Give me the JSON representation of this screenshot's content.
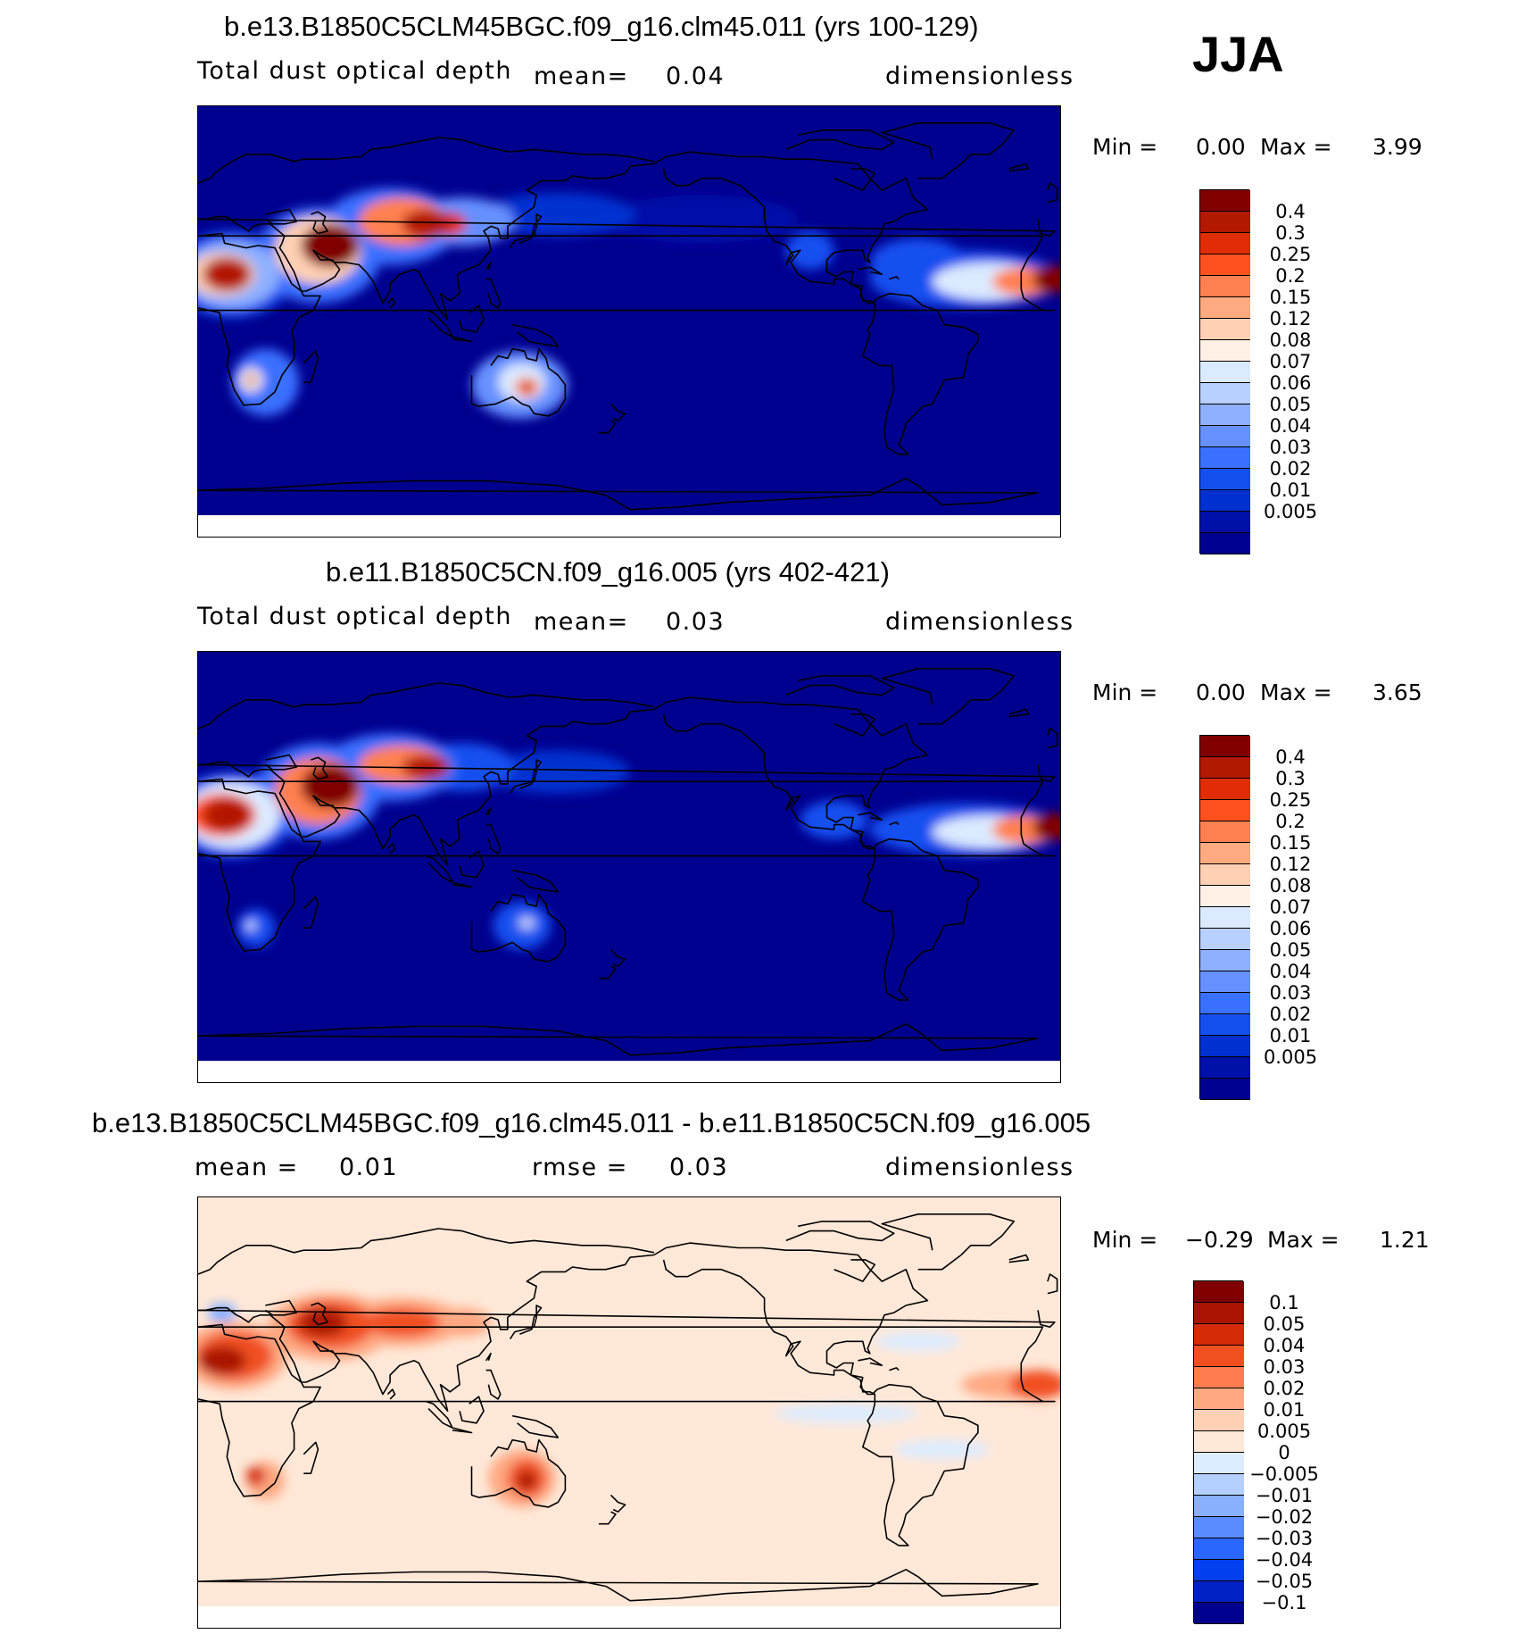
{
  "season": "JJA",
  "colors": {
    "abs": [
      "#00008f",
      "#0010a8",
      "#0030d0",
      "#1450f0",
      "#3a70ff",
      "#6690ff",
      "#8eb0ff",
      "#b8d0ff",
      "#dceaff",
      "#fff0e6",
      "#ffd0b4",
      "#ffaa80",
      "#ff8050",
      "#ff5020",
      "#e02d06",
      "#b31800",
      "#800000"
    ],
    "diff": [
      "#00008f",
      "#0022c4",
      "#0040ee",
      "#2a66ff",
      "#5a8cff",
      "#88b0ff",
      "#b4d0ff",
      "#ddecff",
      "#ffe8d8",
      "#ffd0b4",
      "#ffa882",
      "#ff7c50",
      "#f05020",
      "#d42a06",
      "#aa1400",
      "#800000"
    ]
  },
  "panels": [
    {
      "title": "b.e13.B1850C5CLM45BGC.f09_g16.clm45.011 (yrs 100-129)",
      "field": "Total dust optical depth",
      "mean_label": "mean=",
      "mean_value": "0.04",
      "units": "dimensionless",
      "min_label": "Min =",
      "min_value": "0.00",
      "max_label": "Max =",
      "max_value": "3.99"
    },
    {
      "title": "b.e11.B1850C5CN.f09_g16.005 (yrs 402-421)",
      "field": "Total dust optical depth",
      "mean_label": "mean=",
      "mean_value": "0.03",
      "units": "dimensionless",
      "min_label": "Min =",
      "min_value": "0.00",
      "max_label": "Max =",
      "max_value": "3.65"
    },
    {
      "title": "b.e13.B1850C5CLM45BGC.f09_g16.clm45.011 - b.e11.B1850C5CN.f09_g16.005",
      "mean_label": "mean =",
      "mean_value": "0.01",
      "rmse_label": "rmse =",
      "rmse_value": "0.03",
      "units": "dimensionless",
      "min_label": "Min =",
      "min_value": "−0.29",
      "max_label": "Max =",
      "max_value": "1.21"
    }
  ],
  "chart_data": [
    {
      "type": "heatmap",
      "title": "b.e13.B1850C5CLM45BGC.f09_g16.clm45.011 (yrs 100-129)",
      "variable": "Total dust optical depth",
      "units": "dimensionless",
      "mean": 0.04,
      "min": 0.0,
      "max": 3.99,
      "colorbar_levels": [
        "0.4",
        "0.3",
        "0.25",
        "0.2",
        "0.15",
        "0.12",
        "0.08",
        "0.07",
        "0.06",
        "0.05",
        "0.04",
        "0.03",
        "0.02",
        "0.01",
        "0.005"
      ]
    },
    {
      "type": "heatmap",
      "title": "b.e11.B1850C5CN.f09_g16.005 (yrs 402-421)",
      "variable": "Total dust optical depth",
      "units": "dimensionless",
      "mean": 0.03,
      "min": 0.0,
      "max": 3.65,
      "colorbar_levels": [
        "0.4",
        "0.3",
        "0.25",
        "0.2",
        "0.15",
        "0.12",
        "0.08",
        "0.07",
        "0.06",
        "0.05",
        "0.04",
        "0.03",
        "0.02",
        "0.01",
        "0.005"
      ]
    },
    {
      "type": "heatmap",
      "title": "b.e13.B1850C5CLM45BGC.f09_g16.clm45.011 - b.e11.B1850C5CN.f09_g16.005",
      "units": "dimensionless",
      "mean": 0.01,
      "rmse": 0.03,
      "min": -0.29,
      "max": 1.21,
      "colorbar_levels": [
        "0.1",
        "0.05",
        "0.04",
        "0.03",
        "0.02",
        "0.01",
        "0.005",
        "0",
        "−0.005",
        "−0.01",
        "−0.02",
        "−0.03",
        "−0.04",
        "−0.05",
        "−0.1"
      ]
    }
  ]
}
